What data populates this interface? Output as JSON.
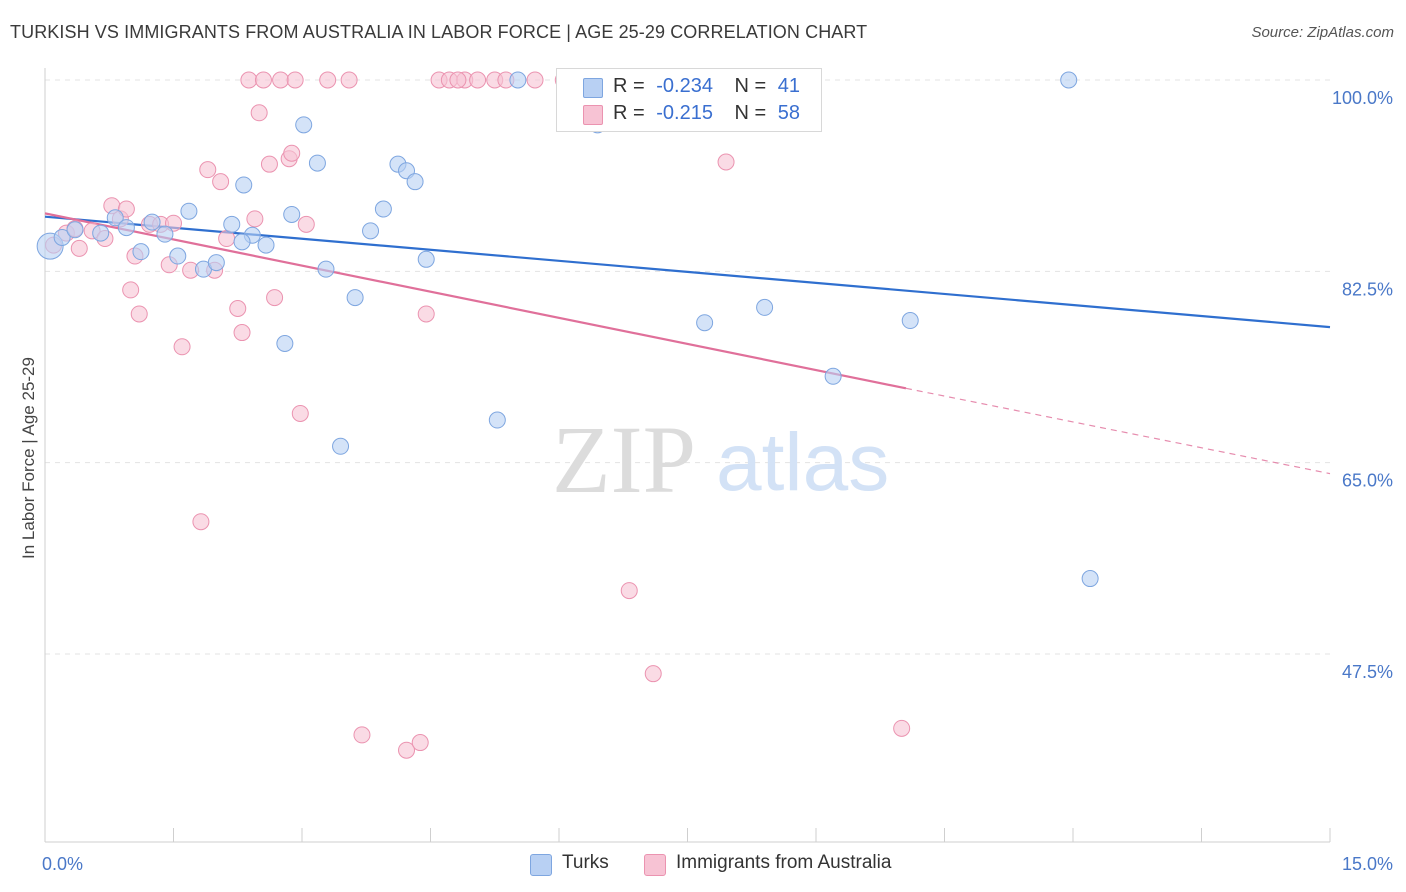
{
  "header": {
    "title": "TURKISH VS IMMIGRANTS FROM AUSTRALIA IN LABOR FORCE | AGE 25-29 CORRELATION CHART",
    "source": "Source: ZipAtlas.com"
  },
  "watermark": {
    "zip": "ZIP",
    "atlas": "atlas"
  },
  "legend": {
    "turks": {
      "r_label": "R =",
      "r_value": "-0.234",
      "n_label": "N =",
      "n_value": "41"
    },
    "australia": {
      "r_label": "R =",
      "r_value": "-0.215",
      "n_label": "N =",
      "n_value": "58"
    }
  },
  "bottom_legend": {
    "turks": "Turks",
    "australia": "Immigrants from Australia"
  },
  "colors": {
    "turks_fill": "#b8d0f3",
    "turks_stroke": "#7ea6e0",
    "turks_line": "#2f6fcf",
    "aus_fill": "#f7c3d4",
    "aus_stroke": "#eb93b0",
    "aus_line": "#e0709a",
    "tick_text": "#4a78c8",
    "grid": "#e3e3e3"
  },
  "chart_data": {
    "type": "scatter",
    "title": "TURKISH VS IMMIGRANTS FROM AUSTRALIA IN LABOR FORCE | AGE 25-29 CORRELATION CHART",
    "xlabel": "",
    "ylabel": "In Labor Force | Age 25-29",
    "xlim": [
      0,
      15
    ],
    "ylim": [
      37,
      102
    ],
    "x_ticks": [
      0,
      1.5,
      3,
      4.5,
      6,
      7.5,
      9,
      10.5,
      12,
      13.5,
      15
    ],
    "x_tick_labels": [
      {
        "x": 0,
        "label": "0.0%"
      },
      {
        "x": 15,
        "label": "15.0%"
      }
    ],
    "y_ticks": [
      {
        "y": 100,
        "label": "100.0%"
      },
      {
        "y": 82.5,
        "label": "82.5%"
      },
      {
        "y": 65,
        "label": "65.0%"
      },
      {
        "y": 47.5,
        "label": "47.5%"
      }
    ],
    "grid": true,
    "legend_position": "top-center",
    "series": [
      {
        "name": "Turks",
        "points": [
          [
            0.06,
            84.8
          ],
          [
            0.2,
            85.6
          ],
          [
            0.35,
            86.3
          ],
          [
            0.65,
            86
          ],
          [
            0.82,
            87.4
          ],
          [
            0.95,
            86.5
          ],
          [
            1.12,
            84.3
          ],
          [
            1.25,
            87
          ],
          [
            1.4,
            85.9
          ],
          [
            1.55,
            83.9
          ],
          [
            1.68,
            88
          ],
          [
            1.85,
            82.7
          ],
          [
            2.0,
            83.3
          ],
          [
            2.18,
            86.8
          ],
          [
            2.32,
            90.4
          ],
          [
            2.42,
            85.8
          ],
          [
            2.58,
            84.9
          ],
          [
            2.8,
            75.9
          ],
          [
            2.88,
            87.7
          ],
          [
            3.02,
            95.9
          ],
          [
            3.18,
            92.4
          ],
          [
            3.28,
            82.7
          ],
          [
            3.45,
            66.5
          ],
          [
            3.62,
            80.1
          ],
          [
            3.8,
            86.2
          ],
          [
            3.95,
            88.2
          ],
          [
            4.12,
            92.3
          ],
          [
            4.22,
            91.7
          ],
          [
            4.32,
            90.7
          ],
          [
            4.45,
            83.6
          ],
          [
            5.28,
            68.9
          ],
          [
            5.52,
            100
          ],
          [
            6.45,
            95.9
          ],
          [
            7.7,
            77.8
          ],
          [
            8.4,
            79.2
          ],
          [
            9.2,
            72.9
          ],
          [
            10.1,
            78
          ],
          [
            11.95,
            100
          ],
          [
            12.2,
            54.4
          ],
          [
            6.5,
            100
          ],
          [
            2.3,
            85.2
          ]
        ],
        "trend": {
          "x0": 0,
          "y0": 87.5,
          "x1": 15,
          "y1": 77.4
        }
      },
      {
        "name": "Immigrants from Australia",
        "points": [
          [
            0.1,
            84.9
          ],
          [
            0.25,
            86
          ],
          [
            0.4,
            84.6
          ],
          [
            0.55,
            86.2
          ],
          [
            0.7,
            85.5
          ],
          [
            0.78,
            88.5
          ],
          [
            0.88,
            87.3
          ],
          [
            0.95,
            88.2
          ],
          [
            1.05,
            83.9
          ],
          [
            1.0,
            80.8
          ],
          [
            1.1,
            78.6
          ],
          [
            1.22,
            86.8
          ],
          [
            1.35,
            86.8
          ],
          [
            1.45,
            83.1
          ],
          [
            1.5,
            86.9
          ],
          [
            1.6,
            75.6
          ],
          [
            1.7,
            82.6
          ],
          [
            1.82,
            59.6
          ],
          [
            1.9,
            91.8
          ],
          [
            1.98,
            82.6
          ],
          [
            2.05,
            90.7
          ],
          [
            2.12,
            85.5
          ],
          [
            2.25,
            79.1
          ],
          [
            2.3,
            76.9
          ],
          [
            2.45,
            87.3
          ],
          [
            2.5,
            97.0
          ],
          [
            2.38,
            100
          ],
          [
            2.55,
            100
          ],
          [
            2.75,
            100
          ],
          [
            2.68,
            80.1
          ],
          [
            2.62,
            92.3
          ],
          [
            2.85,
            92.8
          ],
          [
            2.88,
            93.3
          ],
          [
            2.98,
            69.5
          ],
          [
            3.05,
            86.8
          ],
          [
            2.92,
            100
          ],
          [
            3.3,
            100
          ],
          [
            3.55,
            100
          ],
          [
            3.7,
            40.1
          ],
          [
            4.22,
            38.7
          ],
          [
            4.38,
            39.4
          ],
          [
            4.6,
            100
          ],
          [
            4.72,
            100
          ],
          [
            4.9,
            100
          ],
          [
            4.45,
            78.6
          ],
          [
            4.82,
            100
          ],
          [
            5.05,
            100
          ],
          [
            5.25,
            100
          ],
          [
            5.72,
            100
          ],
          [
            6.05,
            100
          ],
          [
            6.82,
            53.3
          ],
          [
            7.1,
            45.7
          ],
          [
            7.95,
            92.5
          ],
          [
            10.0,
            40.7
          ],
          [
            6.35,
            100
          ],
          [
            5.38,
            100
          ],
          [
            6.55,
            100
          ],
          [
            0.35,
            86.4
          ]
        ],
        "trend": {
          "x0": 0,
          "y0": 87.8,
          "x1": 10.05,
          "y1": 71.8
        },
        "trend_extension": {
          "x0": 10.05,
          "y0": 71.8,
          "x1": 15,
          "y1": 64
        }
      }
    ]
  }
}
